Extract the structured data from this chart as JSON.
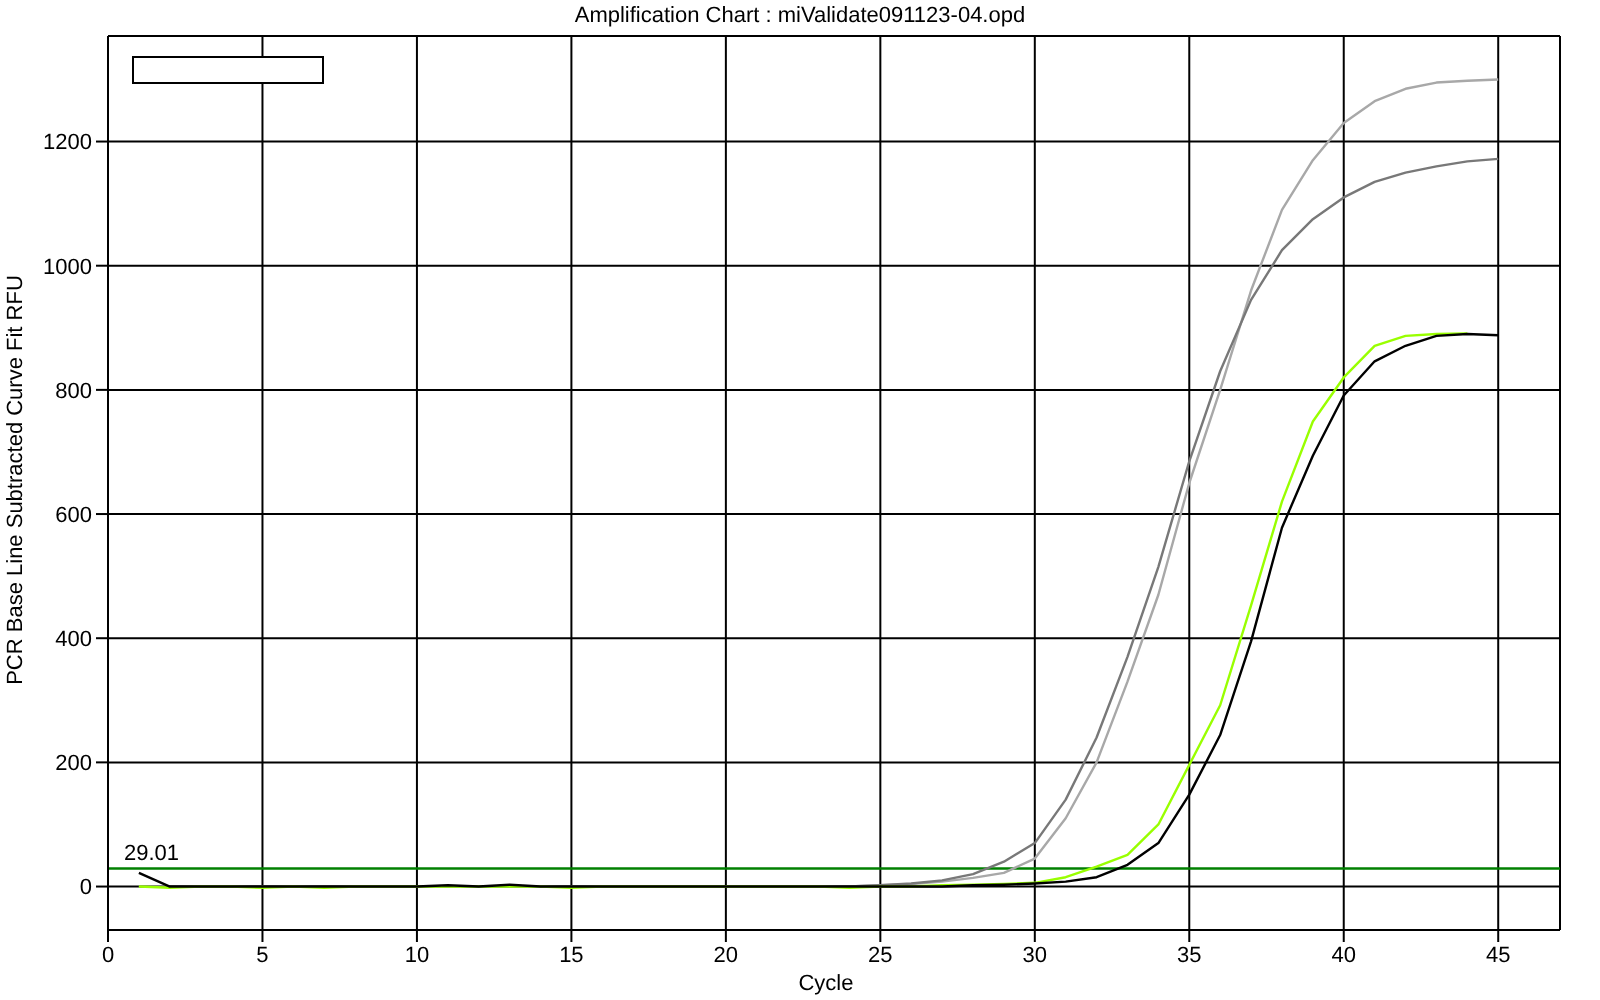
{
  "chart_data": {
    "type": "line",
    "title": "Amplification Chart : miValidate091123-04.opd",
    "xlabel": "Cycle",
    "ylabel": "PCR Base Line Subtracted Curve Fit RFU",
    "x": [
      1,
      2,
      3,
      4,
      5,
      6,
      7,
      8,
      9,
      10,
      11,
      12,
      13,
      14,
      15,
      16,
      17,
      18,
      19,
      20,
      21,
      22,
      23,
      24,
      25,
      26,
      27,
      28,
      29,
      30,
      31,
      32,
      33,
      34,
      35,
      36,
      37,
      38,
      39,
      40,
      41,
      42,
      43,
      44,
      45
    ],
    "series": [
      {
        "color": "#a8a8a8",
        "values": [
          0,
          0,
          0,
          0,
          0,
          0,
          0,
          0,
          0,
          0,
          0,
          0,
          0,
          0,
          0,
          0,
          0,
          0,
          0,
          0,
          0,
          0,
          0,
          0,
          2,
          4,
          8,
          14,
          22,
          45,
          110,
          200,
          330,
          470,
          650,
          800,
          960,
          1090,
          1170,
          1230,
          1265,
          1285,
          1295,
          1298,
          1300
        ]
      },
      {
        "color": "#787878",
        "values": [
          0,
          0,
          0,
          0,
          0,
          0,
          0,
          0,
          0,
          0,
          0,
          0,
          0,
          0,
          0,
          0,
          0,
          0,
          0,
          0,
          0,
          0,
          0,
          0,
          2,
          5,
          10,
          20,
          40,
          70,
          140,
          240,
          370,
          515,
          685,
          830,
          945,
          1025,
          1075,
          1110,
          1135,
          1150,
          1160,
          1168,
          1172
        ]
      },
      {
        "color": "#99ff00",
        "values": [
          0,
          -2,
          0,
          0,
          -2,
          0,
          -2,
          0,
          0,
          0,
          0,
          0,
          0,
          0,
          -2,
          0,
          0,
          0,
          0,
          0,
          0,
          0,
          0,
          -2,
          0,
          0,
          2,
          3,
          4,
          6,
          15,
          32,
          51,
          100,
          196,
          292,
          453,
          620,
          749,
          820,
          871,
          887,
          890,
          891,
          null
        ]
      },
      {
        "color": "#000000",
        "values": [
          22,
          0,
          0,
          0,
          0,
          0,
          0,
          0,
          0,
          0,
          2,
          0,
          3,
          0,
          0,
          0,
          0,
          0,
          0,
          0,
          0,
          0,
          0,
          0,
          0,
          0,
          0,
          2,
          3,
          5,
          8,
          15,
          35,
          70,
          148,
          244,
          395,
          578,
          694,
          791,
          846,
          871,
          887,
          890,
          888
        ]
      }
    ],
    "xlim": [
      0,
      47
    ],
    "xticks": [
      0,
      5,
      10,
      15,
      20,
      25,
      30,
      35,
      40,
      45
    ],
    "ylim": [
      -70,
      1370
    ],
    "yticks": [
      0,
      200,
      400,
      600,
      800,
      1000,
      1200
    ],
    "ref_lines": [
      {
        "axis": "y",
        "value": 29.01,
        "label": "29.01",
        "color": "#008000"
      }
    ],
    "grid": true
  }
}
